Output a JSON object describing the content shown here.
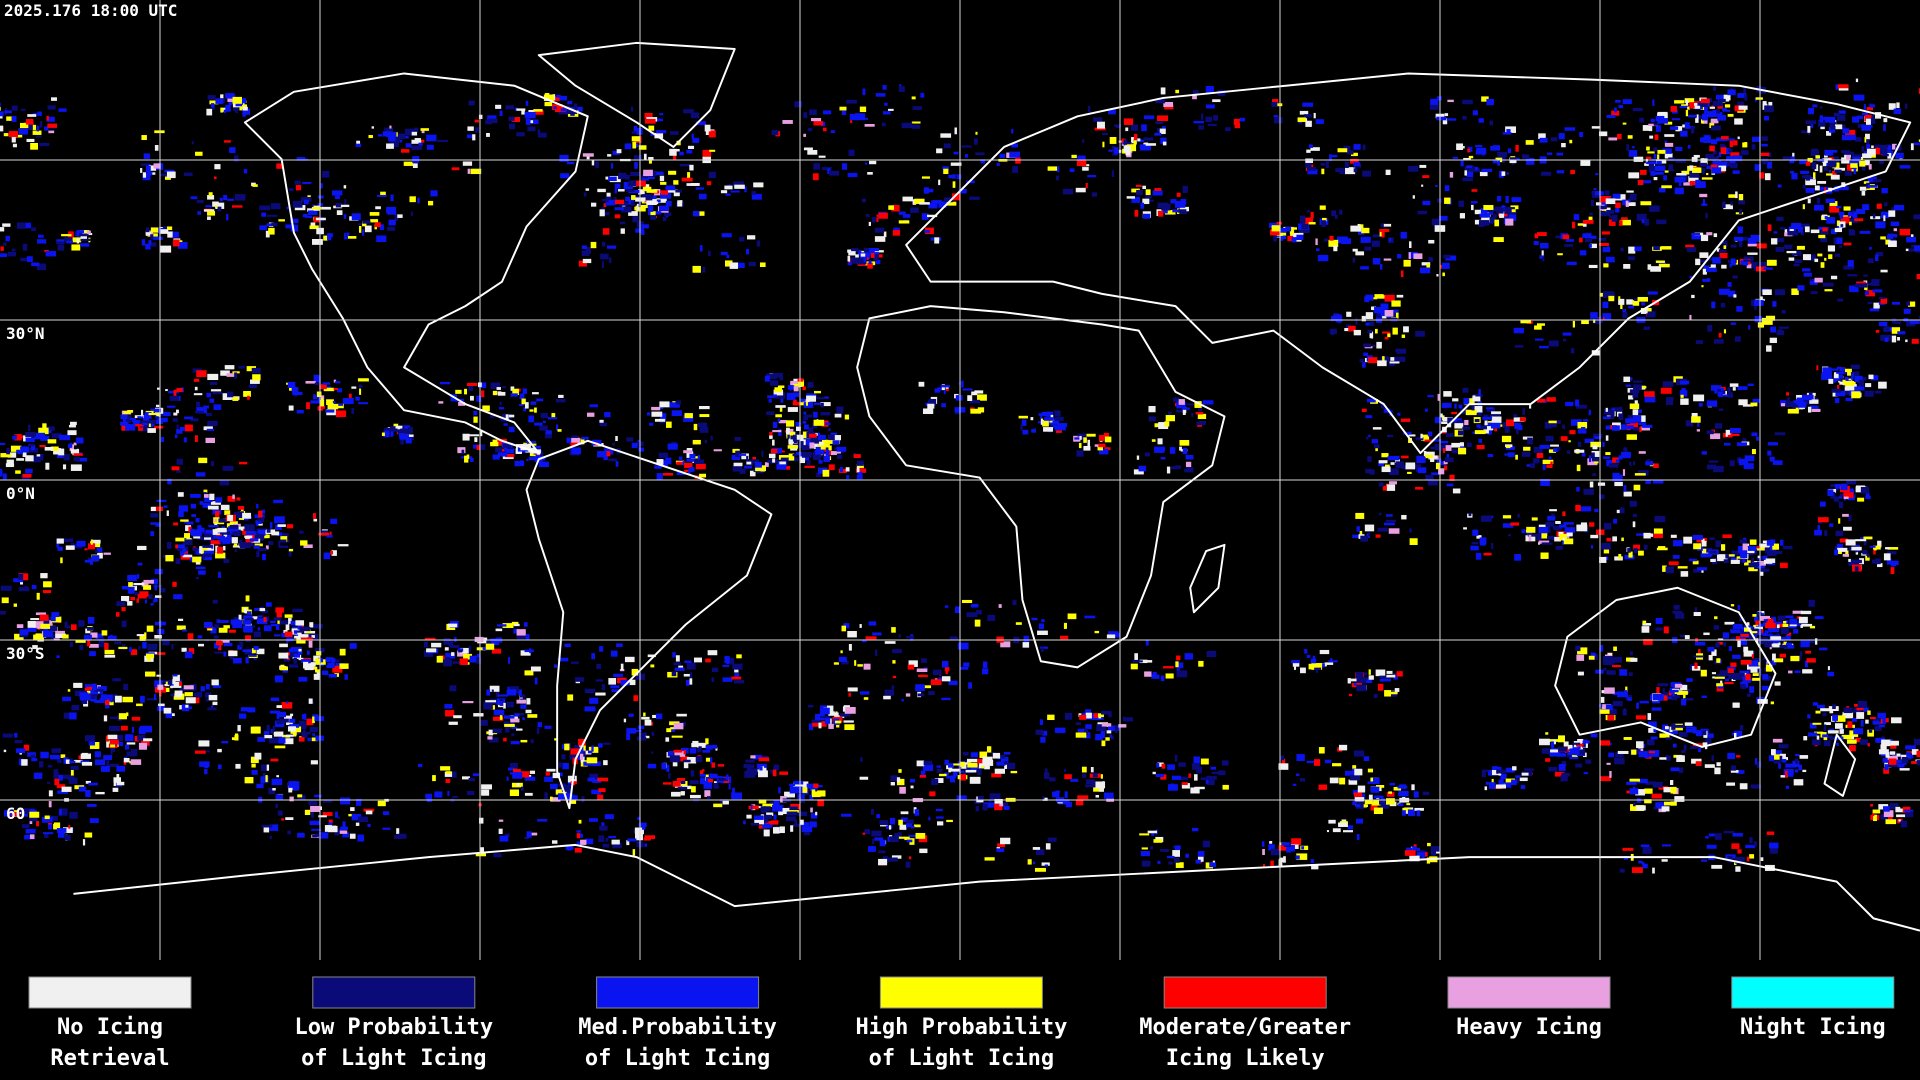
{
  "header": {
    "timestamp": "2025.176 18:00 UTC"
  },
  "map": {
    "latitude_labels": [
      "30°N",
      "0°N",
      "30°S",
      "60"
    ]
  },
  "legend": {
    "items": [
      {
        "lines": [
          "No Icing",
          "Retrieval"
        ],
        "color": "#f0f0f0"
      },
      {
        "lines": [
          "Low Probability",
          "of Light Icing"
        ],
        "color": "#0a0a78"
      },
      {
        "lines": [
          "Med.Probability",
          "of Light Icing"
        ],
        "color": "#0a14f0"
      },
      {
        "lines": [
          "High Probability",
          "of Light Icing"
        ],
        "color": "#ffff00"
      },
      {
        "lines": [
          "Moderate/Greater",
          "Icing Likely"
        ],
        "color": "#ff0000"
      },
      {
        "lines": [
          "Heavy Icing"
        ],
        "color": "#e8a0e0"
      },
      {
        "lines": [
          "Night Icing"
        ],
        "color": "#00ffff"
      }
    ]
  }
}
